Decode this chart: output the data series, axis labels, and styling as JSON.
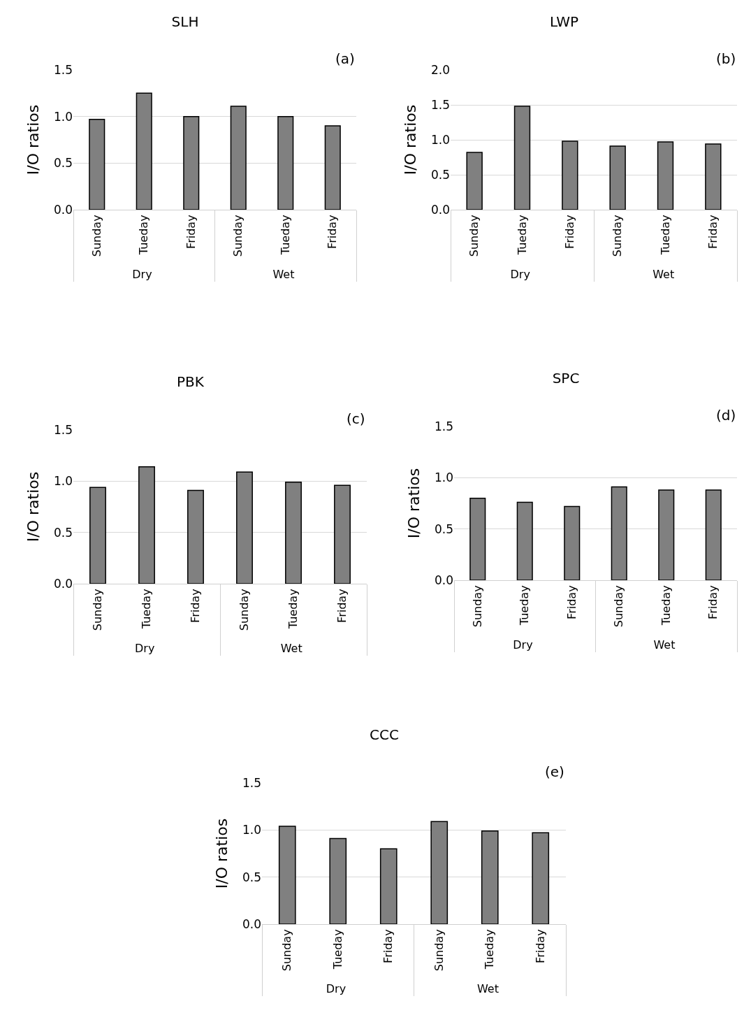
{
  "chart_data": [
    {
      "type": "bar",
      "title": "SLH",
      "ylabel": "I/O ratios",
      "annotations": [
        "(a)",
        "Dry",
        "Wet"
      ],
      "categories": [
        "Sunday",
        "Tueday",
        "Friday",
        "Sunday",
        "Tueday",
        "Friday"
      ],
      "values": [
        0.97,
        1.25,
        1.0,
        1.11,
        1.0,
        0.9
      ],
      "color": "#808080",
      "ylim": [
        0,
        1.5
      ],
      "yticks": [
        {
          "value": 0,
          "label": "0.0"
        },
        {
          "value": 0.5,
          "label": "0.5"
        },
        {
          "value": 1,
          "label": "1.0"
        },
        {
          "value": 1.5,
          "label": "1.5"
        }
      ],
      "grid": "y"
    },
    {
      "type": "bar",
      "title": "LWP",
      "ylabel": "I/O ratios",
      "annotations": [
        "(b)",
        "Dry",
        "Wet"
      ],
      "categories": [
        "Sunday",
        "Tueday",
        "Friday",
        "Sunday",
        "Tueday",
        "Friday"
      ],
      "values": [
        0.82,
        1.48,
        0.98,
        0.91,
        0.97,
        0.94
      ],
      "color": "#808080",
      "ylim": [
        0,
        2
      ],
      "yticks": [
        {
          "value": 0,
          "label": "0.0"
        },
        {
          "value": 0.5,
          "label": "0.5"
        },
        {
          "value": 1,
          "label": "1.0"
        },
        {
          "value": 1.5,
          "label": "1.5"
        },
        {
          "value": 2,
          "label": "2.0"
        }
      ],
      "grid": "y"
    },
    {
      "type": "bar",
      "title": "PBK",
      "ylabel": "I/O ratios",
      "annotations": [
        "(c)",
        "Dry",
        "Wet"
      ],
      "categories": [
        "Sunday",
        "Tueday",
        "Friday",
        "Sunday",
        "Tueday",
        "Friday"
      ],
      "values": [
        0.94,
        1.14,
        0.91,
        1.09,
        0.99,
        0.96
      ],
      "color": "#808080",
      "ylim": [
        0,
        1.5
      ],
      "yticks": [
        {
          "value": 0,
          "label": "0.0"
        },
        {
          "value": 0.5,
          "label": "0.5"
        },
        {
          "value": 1,
          "label": "1.0"
        },
        {
          "value": 1.5,
          "label": "1.5"
        }
      ],
      "grid": "y"
    },
    {
      "type": "bar",
      "title": "SPC",
      "ylabel": "I/O ratios",
      "annotations": [
        "(d)",
        "Dry",
        "Wet"
      ],
      "categories": [
        "Sunday",
        "Tueday",
        "Friday",
        "Sunday",
        "Tueday",
        "Friday"
      ],
      "values": [
        0.8,
        0.76,
        0.72,
        0.91,
        0.88,
        0.88
      ],
      "color": "#808080",
      "ylim": [
        0,
        1.5
      ],
      "yticks": [
        {
          "value": 0,
          "label": "0.0"
        },
        {
          "value": 0.5,
          "label": "0.5"
        },
        {
          "value": 1,
          "label": "1.0"
        },
        {
          "value": 1.5,
          "label": "1.5"
        }
      ],
      "grid": "y"
    },
    {
      "type": "bar",
      "title": "CCC",
      "ylabel": "I/O ratios",
      "annotations": [
        "(e)",
        "Dry",
        "Wet"
      ],
      "categories": [
        "Sunday",
        "Tueday",
        "Friday",
        "Sunday",
        "Tueday",
        "Friday"
      ],
      "values": [
        1.04,
        0.91,
        0.8,
        1.09,
        0.99,
        0.97
      ],
      "color": "#808080",
      "ylim": [
        0,
        1.5
      ],
      "yticks": [
        {
          "value": 0,
          "label": "0.0"
        },
        {
          "value": 0.5,
          "label": "0.5"
        },
        {
          "value": 1,
          "label": "1.0"
        },
        {
          "value": 1.5,
          "label": "1.5"
        }
      ],
      "grid": "y"
    }
  ]
}
